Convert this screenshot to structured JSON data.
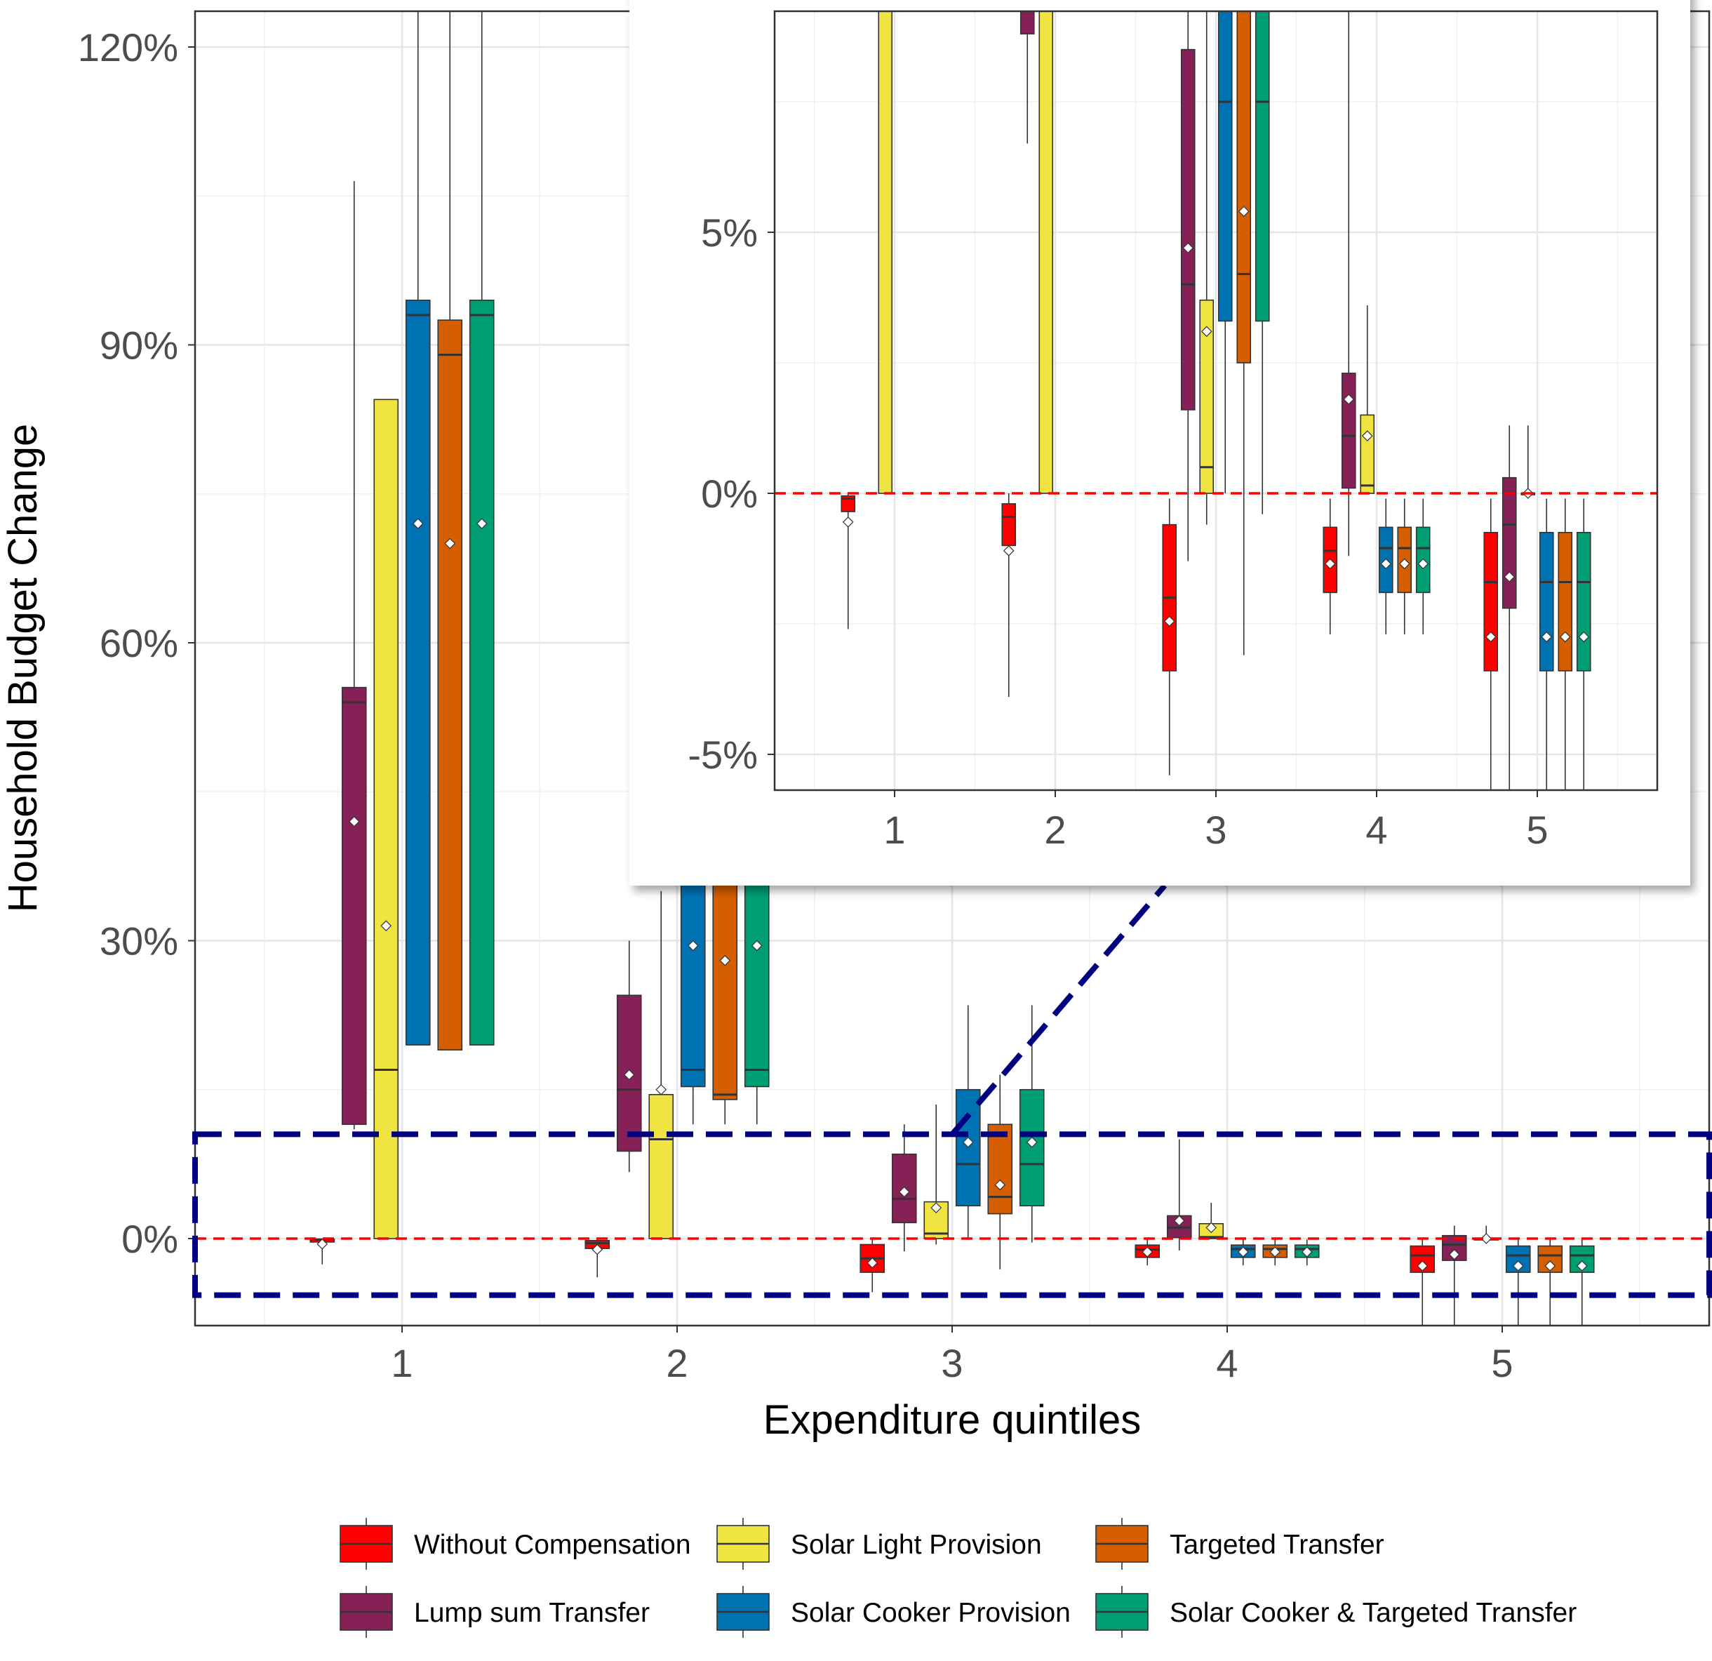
{
  "chart_data": {
    "type": "boxplot",
    "xlabel": "Expenditure quintiles",
    "ylabel": "Household Budget Change",
    "categories": [
      "1",
      "2",
      "3",
      "4",
      "5"
    ],
    "yticks": [
      "0%",
      "30%",
      "60%",
      "90%",
      "120%"
    ],
    "ylim": [
      -9,
      124
    ],
    "reference_line": 0,
    "legend_position": "bottom",
    "colors": {
      "without": "#ff0000",
      "lumpsum": "#862157",
      "solarlight": "#f0e442",
      "solarcooker": "#0072b2",
      "targeted": "#d55e00",
      "cookertargeted": "#009e73"
    },
    "series": [
      {
        "key": "without",
        "name": "Without Compensation",
        "boxes": [
          {
            "q1": -0.35,
            "median": -0.1,
            "q3": -0.05,
            "low": -2.6,
            "high": 0,
            "mean": -0.55
          },
          {
            "q1": -1.0,
            "median": -0.45,
            "q3": -0.2,
            "low": -3.9,
            "high": 0,
            "mean": -1.1
          },
          {
            "q1": -3.4,
            "median": -2.0,
            "q3": -0.6,
            "low": -5.4,
            "high": -0.1,
            "mean": -2.45
          },
          {
            "q1": -1.9,
            "median": -1.1,
            "q3": -0.65,
            "low": -2.7,
            "high": -0.1,
            "mean": -1.35
          },
          {
            "q1": -3.4,
            "median": -1.7,
            "q3": -0.75,
            "low": -9,
            "high": -0.1,
            "mean": -2.75
          }
        ]
      },
      {
        "key": "lumpsum",
        "name": "Lump sum Transfer",
        "boxes": [
          {
            "q1": 11.5,
            "median": 54,
            "q3": 55.5,
            "low": 11,
            "high": 106.5,
            "mean": 42
          },
          {
            "q1": 8.8,
            "median": 15,
            "q3": 24.5,
            "low": 6.7,
            "high": 30,
            "mean": 16.5
          },
          {
            "q1": 1.6,
            "median": 4.0,
            "q3": 8.5,
            "low": -1.3,
            "high": 11.5,
            "mean": 4.7
          },
          {
            "q1": 0.1,
            "median": 1.1,
            "q3": 2.3,
            "low": -1.2,
            "high": 10,
            "mean": 1.8
          },
          {
            "q1": -2.2,
            "median": -0.6,
            "q3": 0.3,
            "low": -9,
            "high": 1.3,
            "mean": -1.6
          }
        ]
      },
      {
        "key": "solarlight",
        "name": "Solar Light Provision",
        "boxes": [
          {
            "q1": 0,
            "median": 17,
            "q3": 84.5,
            "low": 0,
            "high": 84.5,
            "mean": 31.5
          },
          {
            "q1": 0,
            "median": 10,
            "q3": 14.5,
            "low": 0,
            "high": 35,
            "mean": 15
          },
          {
            "q1": 0,
            "median": 0.5,
            "q3": 3.7,
            "low": -0.6,
            "high": 13.5,
            "mean": 3.1
          },
          {
            "q1": 0,
            "median": 0.15,
            "q3": 1.5,
            "low": 0,
            "high": 3.6,
            "mean": 1.1
          },
          {
            "q1": 0,
            "median": 0,
            "q3": 0,
            "low": 0,
            "high": 1.3,
            "mean": 0
          }
        ]
      },
      {
        "key": "solarcooker",
        "name": "Solar Cooker Provision",
        "boxes": [
          {
            "q1": 19.5,
            "median": 93,
            "q3": 94.5,
            "low": 19.5,
            "high": 124,
            "mean": 72
          },
          {
            "q1": 15.3,
            "median": 17,
            "q3": 36,
            "low": 11.5,
            "high": 36,
            "mean": 29.5
          },
          {
            "q1": 3.3,
            "median": 7.5,
            "q3": 15,
            "low": 0,
            "high": 23.5,
            "mean": 9.7
          },
          {
            "q1": -1.9,
            "median": -1.05,
            "q3": -0.65,
            "low": -2.7,
            "high": -0.1,
            "mean": -1.35
          },
          {
            "q1": -3.4,
            "median": -1.7,
            "q3": -0.75,
            "low": -9,
            "high": -0.1,
            "mean": -2.75
          }
        ]
      },
      {
        "key": "targeted",
        "name": "Targeted Transfer",
        "boxes": [
          {
            "q1": 19,
            "median": 89,
            "q3": 92.5,
            "low": 19,
            "high": 124,
            "mean": 70
          },
          {
            "q1": 14,
            "median": 14.5,
            "q3": 36,
            "low": 11.5,
            "high": 36,
            "mean": 28
          },
          {
            "q1": 2.5,
            "median": 4.2,
            "q3": 11.5,
            "low": -3.1,
            "high": 16.5,
            "mean": 5.4
          },
          {
            "q1": -1.9,
            "median": -1.05,
            "q3": -0.65,
            "low": -2.7,
            "high": -0.1,
            "mean": -1.35
          },
          {
            "q1": -3.4,
            "median": -1.7,
            "q3": -0.75,
            "low": -9,
            "high": -0.1,
            "mean": -2.75
          }
        ]
      },
      {
        "key": "cookertargeted",
        "name": "Solar Cooker & Targeted Transfer",
        "boxes": [
          {
            "q1": 19.5,
            "median": 93,
            "q3": 94.5,
            "low": 19.5,
            "high": 124,
            "mean": 72
          },
          {
            "q1": 15.3,
            "median": 17,
            "q3": 36,
            "low": 11.5,
            "high": 36,
            "mean": 29.5
          },
          {
            "q1": 3.3,
            "median": 7.5,
            "q3": 15,
            "low": -0.4,
            "high": 23.5,
            "mean": 9.7
          },
          {
            "q1": -1.9,
            "median": -1.05,
            "q3": -0.65,
            "low": -2.7,
            "high": -0.1,
            "mean": -1.35
          },
          {
            "q1": -3.4,
            "median": -1.7,
            "q3": -0.75,
            "low": -9,
            "high": -0.1,
            "mean": -2.75
          }
        ]
      }
    ],
    "zoom_region": {
      "ylim": [
        -5.7,
        10.5
      ]
    },
    "inset": {
      "ylim": [
        -5.7,
        9.2
      ],
      "yticks": [
        "-5%",
        "0%",
        "5%"
      ],
      "categories": [
        "1",
        "2",
        "3",
        "4",
        "5"
      ],
      "grid": true
    },
    "grid": true
  }
}
